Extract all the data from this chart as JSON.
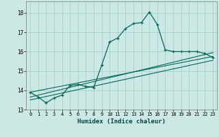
{
  "xlabel": "Humidex (Indice chaleur)",
  "bg_color": "#cce8e4",
  "grid_color": "#aad4cc",
  "line_color": "#006655",
  "xlim": [
    -0.5,
    23.5
  ],
  "ylim": [
    13.0,
    18.6
  ],
  "yticks": [
    13,
    14,
    15,
    16,
    17,
    18
  ],
  "xticks": [
    0,
    1,
    2,
    3,
    4,
    5,
    6,
    7,
    8,
    9,
    10,
    11,
    12,
    13,
    14,
    15,
    16,
    17,
    18,
    19,
    20,
    21,
    22,
    23
  ],
  "main_x": [
    0,
    1,
    2,
    3,
    4,
    5,
    6,
    7,
    8,
    9,
    10,
    11,
    12,
    13,
    14,
    15,
    16,
    17,
    18,
    19,
    20,
    21,
    22,
    23
  ],
  "main_y": [
    13.9,
    13.65,
    13.35,
    13.6,
    13.75,
    14.25,
    14.3,
    14.2,
    14.15,
    15.3,
    16.5,
    16.7,
    17.2,
    17.45,
    17.5,
    18.05,
    17.4,
    16.1,
    16.0,
    16.0,
    16.0,
    16.0,
    15.9,
    15.7
  ],
  "line2_x": [
    0,
    23
  ],
  "line2_y": [
    13.9,
    15.75
  ],
  "line3_x": [
    0,
    23
  ],
  "line3_y": [
    13.5,
    15.55
  ],
  "line4_x": [
    0,
    23
  ],
  "line4_y": [
    13.65,
    15.95
  ]
}
